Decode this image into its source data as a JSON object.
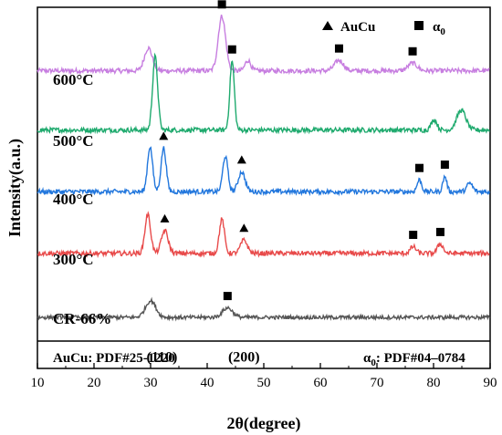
{
  "chart_data": {
    "type": "line",
    "xlabel": "2θ(degree)",
    "ylabel": "Intensity(a.u.)",
    "xlim": [
      10,
      90
    ],
    "x_ticks": [
      "10",
      "20",
      "30",
      "40",
      "50",
      "60",
      "70",
      "80",
      "90"
    ],
    "grid": false,
    "legend": {
      "placement": "top-right",
      "entries": [
        {
          "symbol": "triangle",
          "label": "AuCu",
          "phase": "AuCu"
        },
        {
          "symbol": "square",
          "label": "α0",
          "phase": "alpha0"
        }
      ]
    },
    "series": [
      {
        "name": "600°C",
        "color": "#c77ee0",
        "baseline": 5.2,
        "noise": 0.05,
        "peaks": [
          [
            29.6,
            0.48,
            0.7
          ],
          [
            42.6,
            1.15,
            0.65
          ],
          [
            47.2,
            0.22,
            0.5
          ],
          [
            63.3,
            0.22,
            0.8
          ],
          [
            76.3,
            0.16,
            0.8
          ]
        ],
        "markers": [
          {
            "phase": "alpha0",
            "x": 42.6
          },
          {
            "phase": "alpha0",
            "x": 63.3
          },
          {
            "phase": "alpha0",
            "x": 76.3
          }
        ]
      },
      {
        "name": "500°C",
        "color": "#1faa6e",
        "baseline": 3.95,
        "noise": 0.05,
        "peaks": [
          [
            30.8,
            1.55,
            0.45
          ],
          [
            44.4,
            1.45,
            0.4
          ],
          [
            80.1,
            0.22,
            0.5
          ],
          [
            84.9,
            0.42,
            0.8
          ]
        ],
        "markers": [
          {
            "phase": "alpha0",
            "x": 44.4
          }
        ]
      },
      {
        "name": "400°C",
        "color": "#2277dd",
        "baseline": 2.65,
        "noise": 0.05,
        "peaks": [
          [
            29.9,
            0.95,
            0.45
          ],
          [
            32.3,
            0.92,
            0.45
          ],
          [
            43.2,
            0.75,
            0.45
          ],
          [
            46.1,
            0.42,
            0.6
          ],
          [
            77.5,
            0.25,
            0.4
          ],
          [
            82.0,
            0.32,
            0.35
          ],
          [
            86.4,
            0.18,
            0.5
          ]
        ],
        "markers": [
          {
            "phase": "AuCu",
            "x": 32.3
          },
          {
            "phase": "AuCu",
            "x": 46.1
          },
          {
            "phase": "alpha0",
            "x": 77.5
          },
          {
            "phase": "alpha0",
            "x": 82.0
          }
        ]
      },
      {
        "name": "300°C",
        "color": "#e84a4a",
        "baseline": 1.35,
        "noise": 0.05,
        "peaks": [
          [
            29.5,
            0.82,
            0.5
          ],
          [
            32.5,
            0.48,
            0.6
          ],
          [
            42.6,
            0.72,
            0.45
          ],
          [
            46.5,
            0.28,
            0.6
          ],
          [
            76.4,
            0.14,
            0.5
          ],
          [
            81.2,
            0.2,
            0.5
          ]
        ],
        "markers": [
          {
            "phase": "AuCu",
            "x": 32.5
          },
          {
            "phase": "AuCu",
            "x": 46.5
          },
          {
            "phase": "alpha0",
            "x": 76.4
          },
          {
            "phase": "alpha0",
            "x": 81.2
          }
        ]
      },
      {
        "name": "CR-66%",
        "color": "#555555",
        "baseline": 0.0,
        "noise": 0.04,
        "peaks": [
          [
            30.0,
            0.35,
            0.9
          ],
          [
            43.6,
            0.2,
            0.9
          ]
        ],
        "markers": [
          {
            "phase": "alpha0",
            "x": 43.6
          }
        ]
      }
    ],
    "annotations": [
      {
        "text": "(110)",
        "x": 32.0,
        "y": -0.55
      },
      {
        "text": "(200)",
        "x": 46.5,
        "y": -0.55
      }
    ],
    "pdf_refs": {
      "left": "AuCu:  PDF#25-1220",
      "right_symbol": "α",
      "right_sub": "0",
      "right_rest": ":  PDF#04–0784"
    }
  }
}
